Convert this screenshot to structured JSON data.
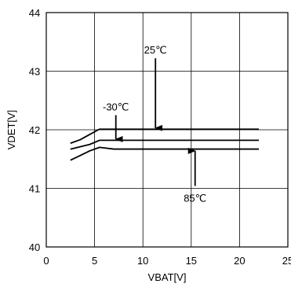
{
  "chart_data": {
    "type": "line",
    "title": "",
    "xlabel": "VBAT[V]",
    "ylabel": "VDET[V]",
    "xlim": [
      0,
      25
    ],
    "ylim": [
      40,
      44
    ],
    "xticks": [
      0,
      5,
      10,
      15,
      20,
      25
    ],
    "yticks": [
      40,
      41,
      42,
      43,
      44
    ],
    "xtick_labels": [
      "0",
      "5",
      "10",
      "15",
      "20",
      "25"
    ],
    "ytick_labels": [
      "40",
      "41",
      "42",
      "43",
      "44"
    ],
    "grid": true,
    "legend": "none",
    "line_color": "#000000",
    "series": [
      {
        "x": [
          2.5,
          3.5,
          4.5,
          5.5,
          7,
          10,
          15,
          22
        ],
        "y": [
          41.77,
          41.83,
          41.92,
          42.01,
          42.01,
          42.01,
          42.01,
          42.01
        ]
      },
      {
        "x": [
          2.5,
          3.5,
          4.5,
          5.5,
          7,
          10,
          15,
          22
        ],
        "y": [
          41.67,
          41.71,
          41.75,
          41.82,
          41.82,
          41.82,
          41.82,
          41.82
        ]
      },
      {
        "x": [
          2.5,
          3.5,
          4.5,
          5.5,
          7,
          10,
          15,
          22
        ],
        "y": [
          41.48,
          41.56,
          41.64,
          41.7,
          41.67,
          41.67,
          41.67,
          41.67
        ]
      }
    ],
    "annotations": [
      {
        "text": "25℃",
        "x": 11.3,
        "y": 43.3,
        "arrow_to": [
          11.3,
          42.03
        ]
      },
      {
        "text": "-30℃",
        "x": 7.2,
        "y": 42.33,
        "arrow_to": [
          7.2,
          41.84
        ]
      },
      {
        "text": "85℃",
        "x": 15.4,
        "y": 40.8,
        "arrow_to": [
          15.4,
          41.64
        ]
      }
    ]
  }
}
